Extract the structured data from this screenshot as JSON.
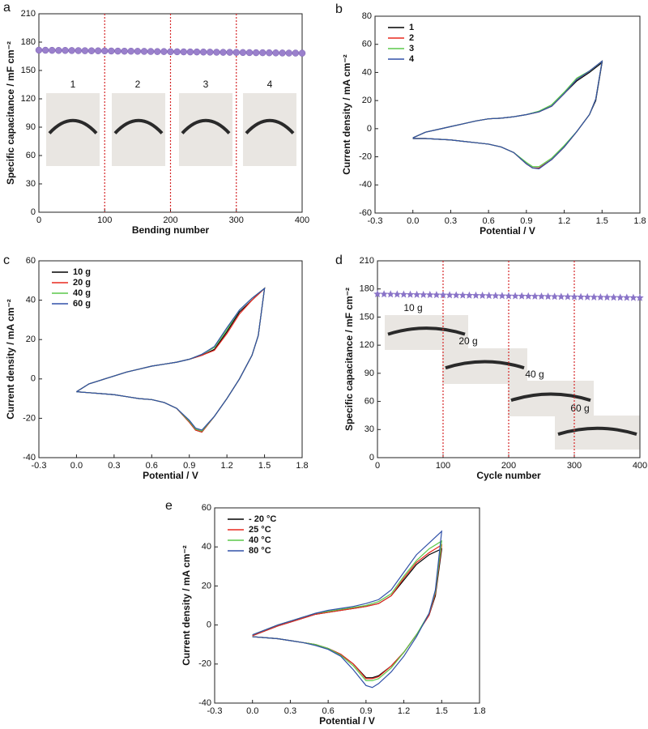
{
  "chart_data": [
    {
      "type": "scatter",
      "panel_label": "a",
      "xlabel": "Bending number",
      "ylabel": "Specific capacitance / mF cm⁻²",
      "xlim": [
        0,
        400
      ],
      "xticks": [
        0,
        100,
        200,
        300,
        400
      ],
      "ylim": [
        0,
        210
      ],
      "yticks": [
        0,
        30,
        60,
        90,
        120,
        150,
        180,
        210
      ],
      "marker": "circle",
      "color": "#9a80cc",
      "vlines": [
        100,
        200,
        300
      ],
      "vline_color": "#d62728",
      "annotations": [
        "1",
        "2",
        "3",
        "4"
      ],
      "x": [
        0,
        10,
        20,
        30,
        40,
        50,
        60,
        70,
        80,
        90,
        100,
        110,
        120,
        130,
        140,
        150,
        160,
        170,
        180,
        190,
        200,
        210,
        220,
        230,
        240,
        250,
        260,
        270,
        280,
        290,
        300,
        310,
        320,
        330,
        340,
        350,
        360,
        370,
        380,
        390,
        400
      ],
      "values": [
        171.5,
        171.4,
        171.3,
        171.2,
        171.2,
        171.1,
        171.0,
        170.9,
        170.8,
        170.8,
        170.7,
        170.6,
        170.5,
        170.4,
        170.4,
        170.3,
        170.2,
        170.1,
        170.0,
        170.0,
        169.9,
        169.8,
        169.7,
        169.6,
        169.6,
        169.5,
        169.4,
        169.3,
        169.2,
        169.2,
        169.1,
        169.0,
        168.9,
        168.8,
        168.8,
        168.7,
        168.6,
        168.5,
        168.4,
        168.4,
        168.3
      ]
    },
    {
      "type": "line",
      "panel_label": "b",
      "xlabel": "Potential / V",
      "ylabel": "Current density / mA cm⁻²",
      "xlim": [
        -0.3,
        1.8
      ],
      "xticks": [
        -0.3,
        {
          "value": 0,
          "label": "0.0"
        },
        0.3,
        0.6,
        0.9,
        1.2,
        1.5,
        1.8
      ],
      "ylim": [
        -60,
        80
      ],
      "yticks": [
        -60,
        -40,
        -20,
        0,
        20,
        40,
        60,
        80
      ],
      "legend": "upper left",
      "x": [
        0,
        0.1,
        0.2,
        0.3,
        0.4,
        0.5,
        0.6,
        0.7,
        0.8,
        0.9,
        1.0,
        1.1,
        1.2,
        1.3,
        1.4,
        1.5,
        1.45,
        1.4,
        1.3,
        1.2,
        1.1,
        1.0,
        0.95,
        0.9,
        0.8,
        0.7,
        0.6,
        0.5,
        0.4,
        0.3,
        0.2,
        0.1,
        0
      ],
      "series": [
        {
          "name": "1",
          "color": "#000000",
          "values": [
            -6.5,
            -2.5,
            -0.5,
            1.5,
            3.5,
            5.5,
            7,
            7.5,
            8.5,
            10,
            12,
            16,
            25,
            34,
            40,
            47,
            20,
            10,
            -2,
            -13,
            -22,
            -28,
            -28,
            -25,
            -17,
            -13,
            -11,
            -10,
            -9,
            -8,
            -7.5,
            -7,
            -7
          ]
        },
        {
          "name": "2",
          "color": "#e8281e",
          "values": [
            -6.5,
            -2.5,
            -0.5,
            1.5,
            3.5,
            5.5,
            7,
            7.5,
            8.5,
            10,
            12,
            16,
            25,
            35,
            41,
            48,
            21,
            10,
            -2,
            -13,
            -22,
            -28,
            -28,
            -25,
            -17,
            -13,
            -11,
            -10,
            -9,
            -8,
            -7.5,
            -7,
            -7
          ]
        },
        {
          "name": "3",
          "color": "#5cc94a",
          "values": [
            -6.5,
            -2.5,
            -0.5,
            1.5,
            3.5,
            5.5,
            7,
            7.5,
            8.5,
            10,
            12.5,
            17,
            26,
            36,
            41,
            48,
            21,
            10,
            -2,
            -12,
            -21,
            -27,
            -27,
            -24,
            -17,
            -13,
            -11,
            -10,
            -9,
            -8,
            -7.5,
            -7,
            -7
          ]
        },
        {
          "name": "4",
          "color": "#3050a8",
          "values": [
            -6.5,
            -2.5,
            -0.5,
            1.5,
            3.5,
            5.5,
            7,
            7.5,
            8.5,
            10,
            12,
            16,
            25,
            35,
            41,
            48,
            21,
            10,
            -2,
            -13,
            -22,
            -28.5,
            -28,
            -25,
            -17,
            -13,
            -11,
            -10,
            -9,
            -8,
            -7.5,
            -7,
            -7
          ]
        }
      ]
    },
    {
      "type": "line",
      "panel_label": "c",
      "xlabel": "Potential / V",
      "ylabel": "Current density / mA cm⁻²",
      "xlim": [
        -0.3,
        1.8
      ],
      "xticks": [
        -0.3,
        {
          "value": 0,
          "label": "0.0"
        },
        0.3,
        0.6,
        0.9,
        1.2,
        1.5,
        1.8
      ],
      "ylim": [
        -40,
        60
      ],
      "yticks": [
        -40,
        -20,
        0,
        20,
        40,
        60
      ],
      "legend": "upper left",
      "x": [
        0,
        0.1,
        0.2,
        0.3,
        0.4,
        0.5,
        0.6,
        0.7,
        0.8,
        0.9,
        1.0,
        1.1,
        1.2,
        1.3,
        1.4,
        1.5,
        1.45,
        1.4,
        1.3,
        1.2,
        1.1,
        1.0,
        0.95,
        0.9,
        0.8,
        0.7,
        0.6,
        0.5,
        0.4,
        0.3,
        0.2,
        0.1,
        0
      ],
      "series": [
        {
          "name": "10 g",
          "color": "#000000",
          "values": [
            -6.5,
            -2.5,
            -0.5,
            1.5,
            3.5,
            5,
            6.5,
            7.5,
            8.5,
            10,
            12,
            15,
            24,
            34,
            40,
            46,
            22,
            12,
            0,
            -10,
            -19,
            -27,
            -26,
            -22,
            -15,
            -12,
            -10.5,
            -10,
            -9,
            -8,
            -7.5,
            -7,
            -6.5
          ]
        },
        {
          "name": "20 g",
          "color": "#e8281e",
          "values": [
            -6.5,
            -2.5,
            -0.5,
            1.5,
            3.5,
            5,
            6.5,
            7.5,
            8.5,
            10,
            12,
            14.5,
            23,
            33,
            40,
            46,
            22,
            12,
            0,
            -10,
            -19,
            -27,
            -26,
            -22,
            -15,
            -12,
            -10.5,
            -10,
            -9,
            -8,
            -7.5,
            -7,
            -6.5
          ]
        },
        {
          "name": "40 g",
          "color": "#5cc94a",
          "values": [
            -6.5,
            -2.5,
            -0.5,
            1.5,
            3.5,
            5,
            6.5,
            7.5,
            8.5,
            10,
            12.5,
            16,
            25,
            35,
            41,
            46,
            22,
            12,
            0,
            -10,
            -19,
            -26.5,
            -25.5,
            -21.5,
            -15,
            -12,
            -10.5,
            -10,
            -9,
            -8,
            -7.5,
            -7,
            -6.5
          ]
        },
        {
          "name": "60 g",
          "color": "#3050a8",
          "values": [
            -6.5,
            -2.5,
            -0.5,
            1.5,
            3.5,
            5,
            6.5,
            7.5,
            8.5,
            10,
            12.5,
            16.5,
            26,
            35,
            41,
            46,
            22,
            12,
            0,
            -10,
            -19,
            -26,
            -25,
            -21,
            -15,
            -12,
            -10.5,
            -10,
            -9,
            -8,
            -7.5,
            -7,
            -6.5
          ]
        }
      ]
    },
    {
      "type": "scatter",
      "panel_label": "d",
      "xlabel": "Cycle number",
      "ylabel": "Specific capacitance / mF cm⁻²",
      "xlim": [
        0,
        400
      ],
      "xticks": [
        0,
        100,
        200,
        300,
        400
      ],
      "ylim": [
        0,
        210
      ],
      "yticks": [
        0,
        30,
        60,
        90,
        120,
        150,
        180,
        210
      ],
      "marker": "star",
      "color": "#8a74c8",
      "vlines": [
        100,
        200,
        300
      ],
      "vline_color": "#d62728",
      "annotations": [
        "10 g",
        "20 g",
        "40 g",
        "60 g"
      ],
      "x": [
        0,
        10,
        20,
        30,
        40,
        50,
        60,
        70,
        80,
        90,
        100,
        110,
        120,
        130,
        140,
        150,
        160,
        170,
        180,
        190,
        200,
        210,
        220,
        230,
        240,
        250,
        260,
        270,
        280,
        290,
        300,
        310,
        320,
        330,
        340,
        350,
        360,
        370,
        380,
        390,
        400
      ],
      "values": [
        174.5,
        174.4,
        174.3,
        174.2,
        174.1,
        174.0,
        173.9,
        173.8,
        173.7,
        173.6,
        173.5,
        173.4,
        173.3,
        173.2,
        173.1,
        173.0,
        172.9,
        172.8,
        172.7,
        172.6,
        172.5,
        172.4,
        172.3,
        172.2,
        172.1,
        172.0,
        171.9,
        171.8,
        171.7,
        171.6,
        171.5,
        171.4,
        171.3,
        171.2,
        171.1,
        171.0,
        170.9,
        170.8,
        170.7,
        170.6,
        170.5
      ]
    },
    {
      "type": "line",
      "panel_label": "e",
      "xlabel": "Potential / V",
      "ylabel": "Current density / mA cm⁻²",
      "xlim": [
        -0.3,
        1.8
      ],
      "xticks": [
        -0.3,
        {
          "value": 0,
          "label": "0.0"
        },
        0.3,
        0.6,
        0.9,
        1.2,
        1.5,
        1.8
      ],
      "ylim": [
        -40,
        60
      ],
      "yticks": [
        -40,
        -20,
        0,
        20,
        40,
        60
      ],
      "legend": "upper left",
      "x": [
        0,
        0.1,
        0.2,
        0.3,
        0.4,
        0.5,
        0.6,
        0.7,
        0.8,
        0.9,
        1.0,
        1.1,
        1.2,
        1.3,
        1.4,
        1.5,
        1.45,
        1.4,
        1.3,
        1.2,
        1.1,
        1.0,
        0.95,
        0.9,
        0.8,
        0.7,
        0.6,
        0.5,
        0.4,
        0.3,
        0.2,
        0.1,
        0
      ],
      "series": [
        {
          "name": "- 20 °C",
          "color": "#000000",
          "values": [
            -5.5,
            -3,
            -0.5,
            1.5,
            3.5,
            5.5,
            6.5,
            7.5,
            8.5,
            9.5,
            11,
            15,
            23,
            31,
            36,
            39,
            15,
            5,
            -5,
            -14,
            -21,
            -26,
            -27,
            -27,
            -20,
            -15,
            -12,
            -10,
            -9,
            -8,
            -7,
            -6.5,
            -6
          ]
        },
        {
          "name": "25 °C",
          "color": "#e8281e",
          "values": [
            -5.5,
            -3,
            -0.5,
            1.5,
            3.5,
            5.5,
            6.5,
            7.5,
            8.5,
            9.5,
            11,
            15,
            24,
            32,
            37,
            41,
            16,
            5,
            -5,
            -14,
            -21,
            -26.5,
            -27.5,
            -27.5,
            -20,
            -15,
            -12,
            -10,
            -9,
            -8,
            -7,
            -6.5,
            -6
          ]
        },
        {
          "name": "40 °C",
          "color": "#5cc94a",
          "values": [
            -5,
            -2.5,
            0,
            2,
            4,
            6,
            7,
            8,
            9,
            10,
            12,
            16,
            25,
            33,
            39,
            43,
            17,
            6,
            -5,
            -14,
            -22,
            -27.5,
            -28.5,
            -28.5,
            -21,
            -15.5,
            -12,
            -10,
            -9,
            -8,
            -7,
            -6.5,
            -6
          ]
        },
        {
          "name": "80 °C",
          "color": "#3050a8",
          "values": [
            -5,
            -2.5,
            0,
            2,
            4,
            6,
            7.5,
            8.5,
            9.5,
            11,
            13,
            18,
            27,
            36,
            42,
            48,
            18,
            6,
            -6,
            -16,
            -24,
            -30,
            -32,
            -31,
            -23,
            -16,
            -12.5,
            -10.5,
            -9,
            -8,
            -7,
            -6.5,
            -6
          ]
        }
      ]
    }
  ]
}
